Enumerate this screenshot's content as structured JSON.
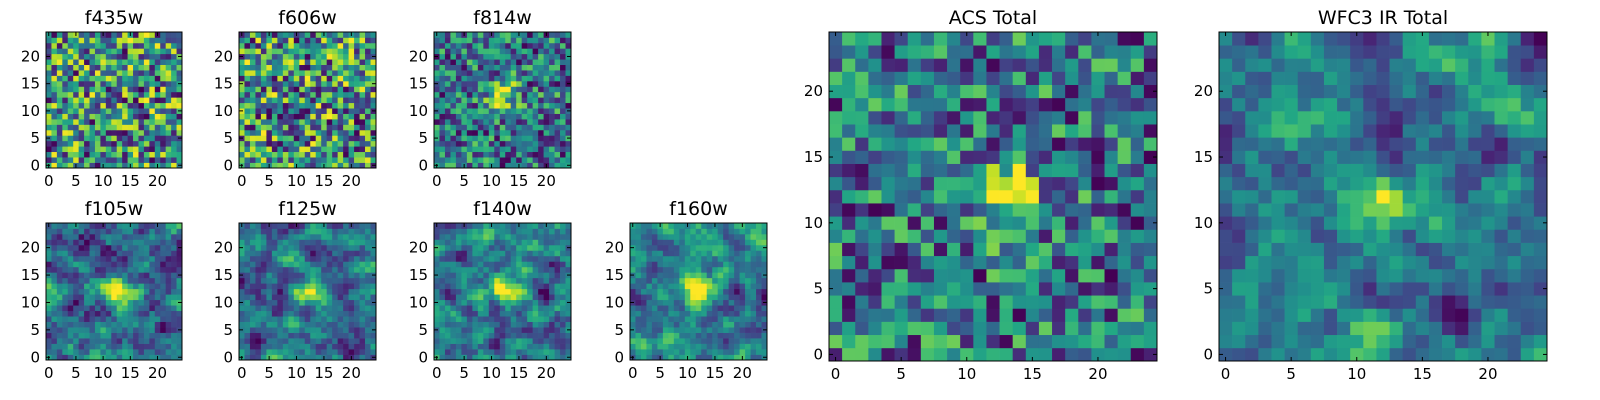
{
  "colormap": "viridis",
  "chart_data": [
    {
      "type": "heatmap",
      "title": "f435w",
      "grid_size": 25,
      "xlim": [
        -0.5,
        24.5
      ],
      "ylim": [
        -0.5,
        24.5
      ],
      "xticks": [
        0,
        5,
        10,
        15,
        20
      ],
      "yticks": [
        0,
        5,
        10,
        15,
        20
      ],
      "peak": null,
      "field": "noisy"
    },
    {
      "type": "heatmap",
      "title": "f606w",
      "grid_size": 25,
      "xlim": [
        -0.5,
        24.5
      ],
      "ylim": [
        -0.5,
        24.5
      ],
      "xticks": [
        0,
        5,
        10,
        15,
        20
      ],
      "yticks": [
        0,
        5,
        10,
        15,
        20
      ],
      "peak": null,
      "field": "noisy"
    },
    {
      "type": "heatmap",
      "title": "f814w",
      "grid_size": 25,
      "xlim": [
        -0.5,
        24.5
      ],
      "ylim": [
        -0.5,
        24.5
      ],
      "xticks": [
        0,
        5,
        10,
        15,
        20
      ],
      "yticks": [
        0,
        5,
        10,
        15,
        20
      ],
      "peak": [
        12,
        13
      ],
      "field": "noisy"
    },
    {
      "type": "heatmap",
      "title": "f105w",
      "grid_size": 25,
      "xlim": [
        -0.5,
        24.5
      ],
      "ylim": [
        -0.5,
        24.5
      ],
      "xticks": [
        0,
        5,
        10,
        15,
        20
      ],
      "yticks": [
        0,
        5,
        10,
        15,
        20
      ],
      "peak": [
        12,
        12
      ],
      "field": "smooth"
    },
    {
      "type": "heatmap",
      "title": "f125w",
      "grid_size": 25,
      "xlim": [
        -0.5,
        24.5
      ],
      "ylim": [
        -0.5,
        24.5
      ],
      "xticks": [
        0,
        5,
        10,
        15,
        20
      ],
      "yticks": [
        0,
        5,
        10,
        15,
        20
      ],
      "peak": [
        12,
        12
      ],
      "field": "smooth"
    },
    {
      "type": "heatmap",
      "title": "f140w",
      "grid_size": 25,
      "xlim": [
        -0.5,
        24.5
      ],
      "ylim": [
        -0.5,
        24.5
      ],
      "xticks": [
        0,
        5,
        10,
        15,
        20
      ],
      "yticks": [
        0,
        5,
        10,
        15,
        20
      ],
      "peak": [
        12,
        12
      ],
      "field": "smooth"
    },
    {
      "type": "heatmap",
      "title": "f160w",
      "grid_size": 25,
      "xlim": [
        -0.5,
        24.5
      ],
      "ylim": [
        -0.5,
        24.5
      ],
      "xticks": [
        0,
        5,
        10,
        15,
        20
      ],
      "yticks": [
        0,
        5,
        10,
        15,
        20
      ],
      "peak": [
        12,
        12
      ],
      "field": "smooth"
    },
    {
      "type": "heatmap",
      "title": "ACS Total",
      "grid_size": 25,
      "xlim": [
        -0.5,
        24.5
      ],
      "ylim": [
        -0.5,
        24.5
      ],
      "xticks": [
        0,
        5,
        10,
        15,
        20
      ],
      "yticks": [
        0,
        5,
        10,
        15,
        20
      ],
      "peak": [
        13,
        12
      ],
      "field": "noisy"
    },
    {
      "type": "heatmap",
      "title": "WFC3 IR Total",
      "grid_size": 25,
      "xlim": [
        -0.5,
        24.5
      ],
      "ylim": [
        -0.5,
        24.5
      ],
      "xticks": [
        0,
        5,
        10,
        15,
        20
      ],
      "yticks": [
        0,
        5,
        10,
        15,
        20
      ],
      "peak": [
        12,
        12
      ],
      "field": "smooth"
    }
  ]
}
